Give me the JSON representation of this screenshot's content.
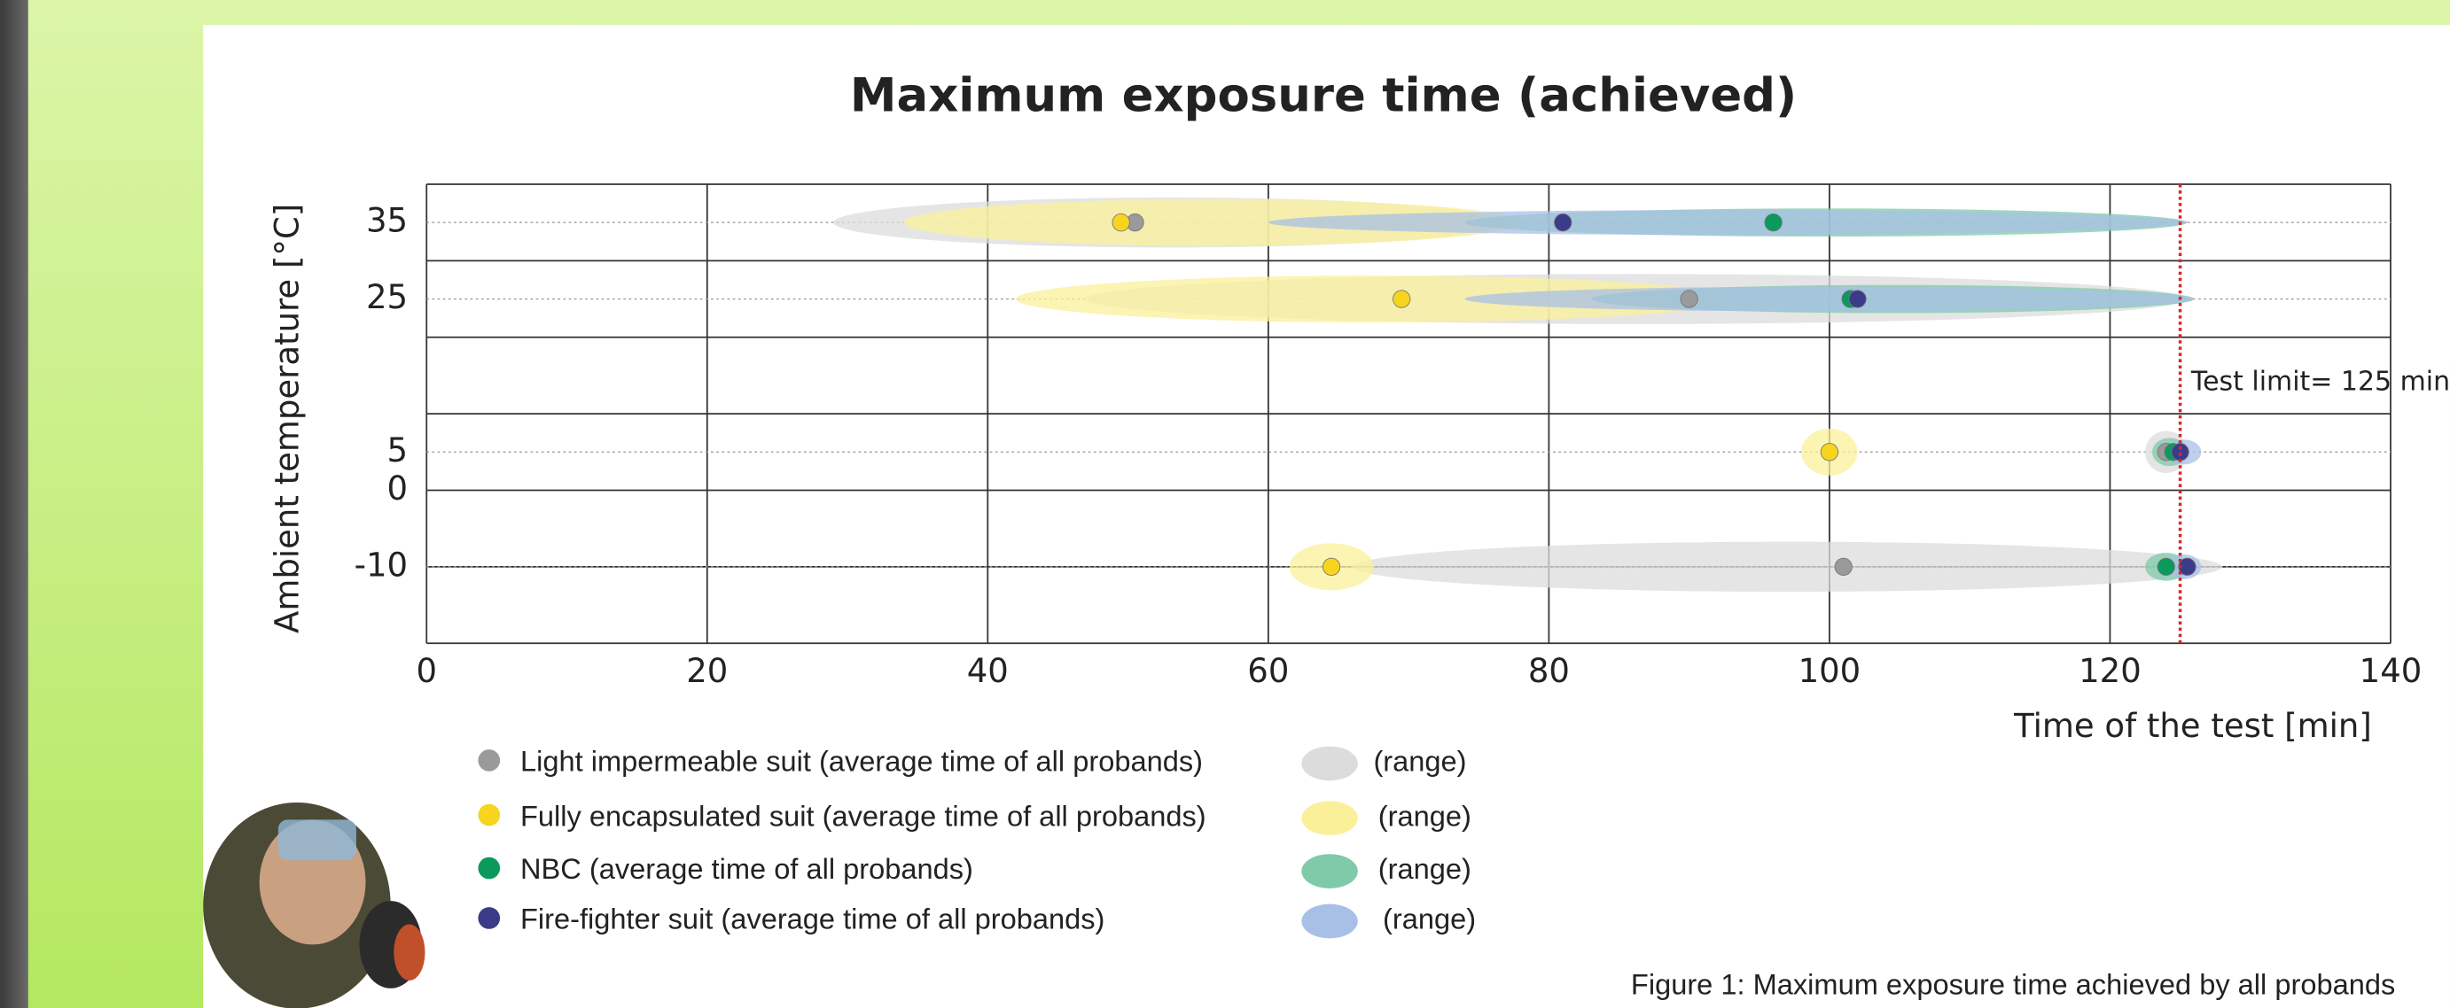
{
  "chart_data": {
    "type": "range-dot",
    "title": "Maximum exposure time (achieved)",
    "x_label": "Time of the test [min]",
    "y_label": "Ambient temperature [°C]",
    "caption": "Figure 1: Maximum exposure time achieved by all probands",
    "xlim": [
      0,
      140
    ],
    "xticks": [
      0,
      20,
      40,
      60,
      80,
      100,
      120,
      140
    ],
    "ylim": [
      -20,
      40
    ],
    "yticks": [
      -10,
      0,
      5,
      25,
      35
    ],
    "ygrid": [
      -20,
      -10,
      0,
      10,
      20,
      30,
      40
    ],
    "rows": [
      35,
      25,
      5,
      -10
    ],
    "range_label": "(range)",
    "limit": 125,
    "limit_label": "Test limit= 125 min",
    "limit_color": "#d9262b",
    "series": [
      {
        "name": "Light impermeable suit (average time of all probands)",
        "color": "#9a9a9a",
        "range_color": "#dcdcdc",
        "values": [
          50.5,
          90,
          124,
          101
        ],
        "ranges": [
          [
            29,
            77
          ],
          [
            47,
            125.5
          ],
          [
            122.5,
            125.5
          ],
          [
            66,
            128
          ]
        ]
      },
      {
        "name": "Fully encapsulated suit (average time of all probands)",
        "color": "#f7d51e",
        "range_color": "#fbf09a",
        "values": [
          49.5,
          69.5,
          100,
          64.5
        ],
        "ranges": [
          [
            34,
            78
          ],
          [
            42,
            93
          ],
          [
            98,
            102
          ],
          [
            61.5,
            67.5
          ]
        ]
      },
      {
        "name": "NBC (average time of all probands)",
        "color": "#0a9a5c",
        "range_color": "#7fcaa8",
        "values": [
          96,
          101.5,
          124.5,
          124
        ],
        "ranges": [
          [
            74,
            125.5
          ],
          [
            83,
            126
          ],
          [
            123,
            125.5
          ],
          [
            122.5,
            125.5
          ]
        ]
      },
      {
        "name": "Fire-fighter suit (average time of all probands)",
        "color": "#3b3b8a",
        "range_color": "#a8c0e6",
        "values": [
          81,
          102,
          125,
          125.5
        ],
        "ranges": [
          [
            60,
            125.5
          ],
          [
            74,
            126
          ],
          [
            124,
            126.5
          ],
          [
            124,
            126.5
          ]
        ]
      }
    ]
  }
}
